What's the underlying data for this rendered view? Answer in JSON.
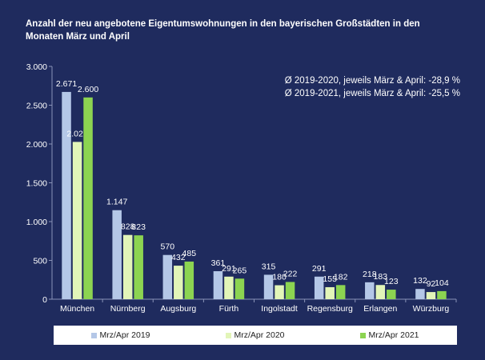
{
  "chart_data": {
    "type": "bar",
    "title": "Anzahl der neu angebotene Eigentumswohnungen in den bayerischen Großstädten in den\nMonaten März und April",
    "categories": [
      "München",
      "Nürnberg",
      "Augsburg",
      "Fürth",
      "Ingolstadt",
      "Regensburg",
      "Erlangen",
      "Würzburg"
    ],
    "series": [
      {
        "name": "Mrz/Apr 2019",
        "values": [
          2671,
          1147,
          570,
          361,
          315,
          291,
          218,
          132
        ],
        "labels": [
          "2.671",
          "1.147",
          "570",
          "361",
          "315",
          "291",
          "218",
          "132"
        ],
        "color": "#b4c7e7"
      },
      {
        "name": "Mrz/Apr 2020",
        "values": [
          2027,
          828,
          432,
          291,
          180,
          155,
          183,
          92
        ],
        "labels": [
          "2.027",
          "828",
          "432",
          "291",
          "180",
          "155",
          "183",
          "92"
        ],
        "color": "#e2f5b8"
      },
      {
        "name": "Mrz/Apr 2021",
        "values": [
          2600,
          823,
          485,
          265,
          222,
          182,
          123,
          104
        ],
        "labels": [
          "2.600",
          "823",
          "485",
          "265",
          "222",
          "182",
          "123",
          "104"
        ],
        "color": "#8cd451"
      }
    ],
    "ylim": [
      0,
      3000
    ],
    "yticks": [
      0,
      500,
      1000,
      1500,
      2000,
      2500,
      3000
    ],
    "ytick_labels": [
      "0",
      "500",
      "1.000",
      "1.500",
      "2.000",
      "2.500",
      "3.000"
    ],
    "annotations": [
      "Ø 2019-2020, jeweils März & April: -28,9 %",
      "Ø 2019-2021, jeweils März & April: -25,5 %"
    ],
    "legend_position": "bottom",
    "grid": false
  }
}
